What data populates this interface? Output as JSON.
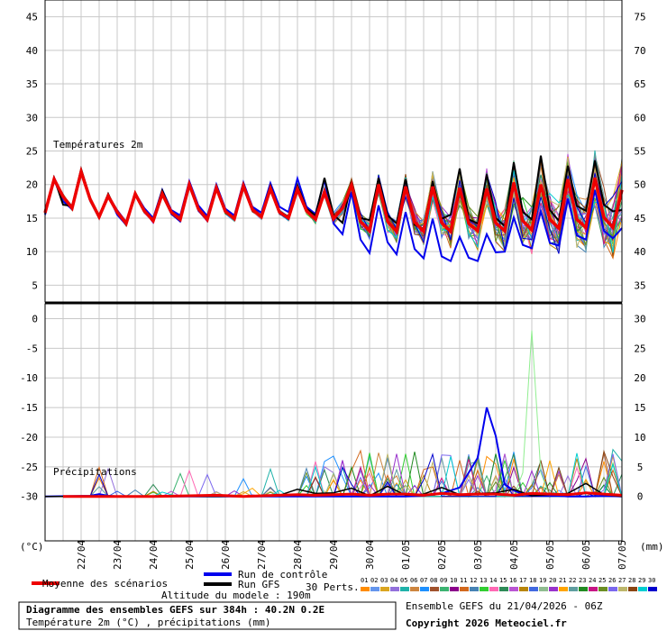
{
  "chart_data": {
    "type": "line",
    "temp_panel": {
      "label": "Températures 2m",
      "left_ticks": [
        "45",
        "40",
        "35",
        "30",
        "25",
        "20",
        "15",
        "10",
        "5"
      ],
      "right_ticks": [
        "75",
        "70",
        "65",
        "60",
        "55",
        "50",
        "45",
        "40",
        "35"
      ],
      "ylim": [
        2.5,
        47.5
      ],
      "series": {
        "mean": {
          "name": "Moyenne des scénarios",
          "color": "#ee0000",
          "x": [
            0,
            1,
            2,
            3,
            4,
            5,
            6,
            7,
            8,
            9,
            10,
            11,
            12,
            13,
            14,
            15,
            16,
            17,
            18,
            19,
            20,
            21,
            22,
            23,
            24,
            25,
            26,
            27,
            28,
            29,
            30,
            31,
            32,
            33,
            34,
            35,
            36,
            37,
            38,
            39,
            40,
            41,
            42,
            43,
            44,
            45,
            46,
            47,
            48,
            49,
            50,
            51,
            52,
            53,
            54,
            55,
            56,
            57,
            58,
            59,
            60,
            61,
            62,
            63,
            64
          ],
          "y": [
            15.8,
            20.8,
            18.2,
            16.5,
            21.9,
            17.8,
            15.2,
            18.3,
            15.9,
            14.2,
            18.6,
            16.1,
            14.6,
            18.6,
            15.9,
            14.8,
            20.0,
            16.4,
            14.8,
            19.5,
            16.0,
            14.9,
            19.8,
            16.3,
            15.2,
            19.4,
            15.9,
            15.0,
            19.3,
            16.1,
            14.8,
            18.9,
            14.9,
            16.5,
            19.9,
            14.5,
            13.1,
            20.0,
            14.5,
            13.0,
            19.7,
            14.4,
            13.0,
            19.7,
            14.3,
            13.0,
            19.5,
            14.2,
            13.1,
            19.4,
            14.3,
            13.1,
            20.3,
            14.6,
            13.2,
            20.0,
            14.8,
            13.5,
            20.8,
            14.8,
            13.6,
            21.0,
            15.1,
            13.6,
            19.2
          ]
        },
        "control": {
          "name": "Run de contrôle",
          "color": "#0000ee",
          "x": [
            0,
            1,
            2,
            3,
            4,
            5,
            6,
            7,
            8,
            9,
            10,
            11,
            12,
            13,
            14,
            15,
            16,
            17,
            18,
            19,
            20,
            21,
            22,
            23,
            24,
            25,
            26,
            27,
            28,
            29,
            30,
            31,
            32,
            33,
            34,
            35,
            36,
            37,
            38,
            39,
            40,
            41,
            42,
            43,
            44,
            45,
            46,
            47,
            48,
            49,
            50,
            51,
            52,
            53,
            54,
            55,
            56,
            57,
            58,
            59,
            60,
            61,
            62,
            63,
            64
          ],
          "y": [
            15.5,
            20.7,
            17.5,
            16.3,
            22.0,
            17.6,
            15.0,
            18.5,
            15.5,
            14.0,
            18.7,
            16.5,
            15.0,
            19.2,
            16.2,
            15.4,
            20.5,
            16.9,
            15.3,
            20.0,
            16.4,
            15.4,
            20.3,
            16.7,
            15.8,
            20.2,
            16.7,
            15.9,
            20.9,
            16.7,
            15.6,
            20.7,
            14.2,
            12.6,
            18.9,
            11.8,
            9.8,
            16.9,
            11.4,
            9.6,
            15.9,
            10.4,
            9.0,
            14.9,
            9.3,
            8.6,
            12.2,
            9.1,
            8.6,
            12.6,
            9.9,
            10.0,
            15.1,
            11.0,
            10.5,
            16.0,
            11.3,
            10.9,
            17.9,
            12.4,
            11.8,
            19.2,
            13.1,
            12.0,
            13.5
          ]
        },
        "gfs": {
          "name": "Run GFS",
          "color": "#000000",
          "x": [
            0,
            1,
            2,
            3,
            4,
            5,
            6,
            7,
            8,
            9,
            10,
            11,
            12,
            13,
            14,
            15,
            16,
            17,
            18,
            19,
            20,
            21,
            22,
            23,
            24,
            25,
            26,
            27,
            28,
            29,
            30,
            31,
            32,
            33,
            34,
            35,
            36,
            37,
            38,
            39,
            40,
            41,
            42,
            43,
            44,
            45,
            46,
            47,
            48,
            49,
            50,
            51,
            52,
            53,
            54,
            55,
            56,
            57,
            58,
            59,
            60,
            61,
            62,
            63,
            64
          ],
          "y": [
            15.7,
            21.0,
            17.0,
            16.8,
            22.3,
            18.0,
            15.3,
            18.6,
            15.8,
            14.3,
            18.8,
            16.2,
            14.7,
            19.1,
            16.0,
            14.9,
            20.2,
            16.5,
            14.9,
            19.8,
            16.1,
            15.0,
            20.1,
            16.4,
            15.3,
            19.8,
            16.0,
            15.2,
            19.9,
            16.4,
            15.4,
            21.0,
            15.5,
            14.3,
            20.4,
            15.0,
            14.7,
            21.0,
            15.4,
            14.2,
            20.8,
            14.0,
            13.4,
            20.5,
            14.9,
            15.5,
            22.4,
            14.8,
            14.2,
            21.5,
            15.0,
            13.8,
            23.3,
            15.9,
            14.8,
            24.3,
            16.2,
            14.6,
            22.8,
            16.8,
            16.1,
            23.6,
            17.0,
            16.0,
            16.2
          ]
        }
      }
    },
    "precip_panel": {
      "label": "Précipitations",
      "left_ticks": [
        "0",
        "-5",
        "-10",
        "-15",
        "-20",
        "-25",
        "-30"
      ],
      "right_ticks": [
        "30",
        "25",
        "20",
        "15",
        "10",
        "5",
        "0"
      ],
      "ylim": [
        -37.5,
        2.5
      ],
      "series": {
        "mean": {
          "x": [
            2,
            8,
            12,
            16,
            19,
            22,
            24,
            26,
            28,
            30,
            32,
            34,
            36,
            38,
            40,
            42,
            44,
            46,
            48,
            50,
            52,
            54,
            56,
            58,
            60,
            62,
            64
          ],
          "y": [
            -30,
            -30,
            -30,
            -29.9,
            -29.8,
            -30,
            -29.9,
            -29.8,
            -29.7,
            -29.8,
            -29.7,
            -29.6,
            -29.8,
            -29.6,
            -29.6,
            -29.8,
            -29.5,
            -29.7,
            -29.6,
            -29.6,
            -29.8,
            -29.5,
            -29.6,
            -29.7,
            -29.4,
            -29.6,
            -29.8
          ]
        },
        "control": {
          "x": [
            0,
            5,
            6,
            7,
            8,
            40,
            42,
            44,
            46,
            48,
            49,
            50,
            51,
            52,
            53,
            54,
            56,
            58,
            60,
            62,
            64
          ],
          "y": [
            -30,
            -29.9,
            -29.6,
            -29.9,
            -30,
            -30,
            -29.9,
            -29.5,
            -28.5,
            -23.5,
            -15.0,
            -19.8,
            -28.0,
            -29.0,
            -29.6,
            -29.9,
            -29.8,
            -30,
            -30,
            -29.9,
            -30
          ]
        },
        "gfs": {
          "x": [
            0,
            24,
            26,
            28,
            30,
            32,
            34,
            36,
            38,
            40,
            42,
            44,
            46,
            48,
            50,
            52,
            54,
            56,
            58,
            60,
            62,
            64
          ],
          "y": [
            -30,
            -30,
            -29.8,
            -28.8,
            -29.5,
            -29.4,
            -28.6,
            -29.9,
            -28.3,
            -29.8,
            -29.6,
            -28.5,
            -29.7,
            -29.5,
            -29.4,
            -28.8,
            -29.9,
            -29.7,
            -29.5,
            -27.8,
            -29.7,
            -30
          ]
        },
        "peak_member": {
          "x": [
            52,
            53,
            54,
            55,
            56
          ],
          "y": [
            -30,
            -26,
            -2.0,
            -26,
            -30
          ]
        }
      }
    },
    "x_dates": [
      "22/04",
      "23/04",
      "24/04",
      "25/04",
      "26/04",
      "27/04",
      "28/04",
      "29/04",
      "30/04",
      "01/05",
      "02/05",
      "03/05",
      "04/05",
      "05/05",
      "06/05",
      "07/05"
    ],
    "axis_units_left": "(°C)",
    "axis_units_right": "(mm)",
    "members_label": "30 Perts.",
    "member_codes": [
      "01",
      "02",
      "03",
      "04",
      "05",
      "06",
      "07",
      "08",
      "09",
      "10",
      "11",
      "12",
      "13",
      "14",
      "15",
      "16",
      "17",
      "18",
      "19",
      "20",
      "21",
      "22",
      "23",
      "24",
      "25",
      "26",
      "27",
      "28",
      "29",
      "30"
    ],
    "member_colors": [
      "#ff8c00",
      "#6495ed",
      "#daa520",
      "#9370db",
      "#20b2aa",
      "#cd853f",
      "#1e90ff",
      "#a0522d",
      "#3cb371",
      "#8b008b",
      "#d2691e",
      "#4682b4",
      "#32cd32",
      "#ff69b4",
      "#2e8b57",
      "#ba55d3",
      "#b8860b",
      "#4169e1",
      "#8fbc8f",
      "#9932cc",
      "#ffa500",
      "#5f9ea0",
      "#228b22",
      "#c71585",
      "#6b8e23",
      "#7b68ee",
      "#bdb76b",
      "#8b4513",
      "#00ced1",
      "#0000cd"
    ]
  },
  "legend": {
    "mean_label": "Moyenne des scénarios",
    "control_label": "Run de contrôle",
    "gfs_label": "Run GFS",
    "altitude": "Altitude du modele : 190m"
  },
  "footer": {
    "title": "Diagramme des ensembles GEFS sur 384h : 40.2N 0.2E",
    "subtitle": "Température 2m (°C) , précipitations (mm)",
    "run": "Ensemble GEFS du 21/04/2026 - 06Z",
    "copyright": "Copyright 2026 Meteociel.fr"
  }
}
